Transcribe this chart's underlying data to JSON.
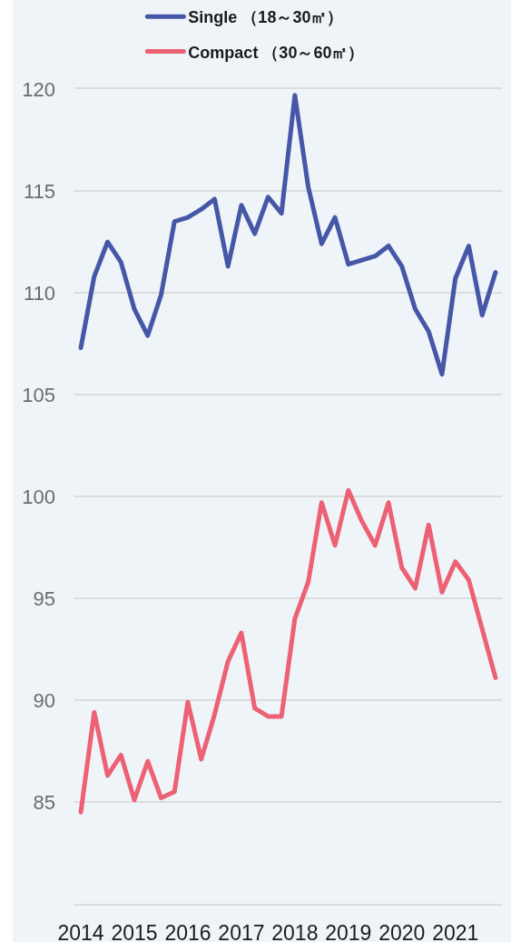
{
  "chart_data": {
    "type": "line",
    "x": [
      2014,
      2014.25,
      2014.5,
      2014.75,
      2015,
      2015.25,
      2015.5,
      2015.75,
      2016,
      2016.25,
      2016.5,
      2016.75,
      2017,
      2017.25,
      2017.5,
      2017.75,
      2018,
      2018.25,
      2018.5,
      2018.75,
      2019,
      2019.25,
      2019.5,
      2019.75,
      2020,
      2020.25,
      2020.5,
      2020.75,
      2021,
      2021.25,
      2021.5,
      2021.75
    ],
    "series": [
      {
        "name": "Single （18～30㎡）",
        "color": "#4557a6",
        "values": [
          107.3,
          110.8,
          112.5,
          111.5,
          109.2,
          107.9,
          109.9,
          113.5,
          113.7,
          114.1,
          114.6,
          111.3,
          114.3,
          112.9,
          114.7,
          113.9,
          119.7,
          115.2,
          112.4,
          113.7,
          111.4,
          111.6,
          111.8,
          112.3,
          111.3,
          109.2,
          108.1,
          106.0,
          110.7,
          112.3,
          108.9,
          111.0
        ]
      },
      {
        "name": "Compact （30～60㎡）",
        "color": "#ec6174",
        "values": [
          84.5,
          89.4,
          86.3,
          87.3,
          85.1,
          87.0,
          85.2,
          85.5,
          89.9,
          87.1,
          89.3,
          91.9,
          93.3,
          89.6,
          89.2,
          89.2,
          94.0,
          95.8,
          99.7,
          97.6,
          100.3,
          98.8,
          97.6,
          99.7,
          96.5,
          95.5,
          98.6,
          95.3,
          96.8,
          95.9,
          93.5,
          91.1
        ]
      }
    ],
    "xlim": [
      2013.88,
      2021.87
    ],
    "xticks": [
      2014,
      2015,
      2016,
      2017,
      2018,
      2019,
      2020,
      2021
    ],
    "ylim": [
      80,
      120
    ],
    "yticks": [
      {
        "value": 80,
        "label": null
      },
      85,
      90,
      95,
      100,
      105,
      110,
      115,
      120
    ],
    "grid": "y",
    "legend": "top"
  }
}
